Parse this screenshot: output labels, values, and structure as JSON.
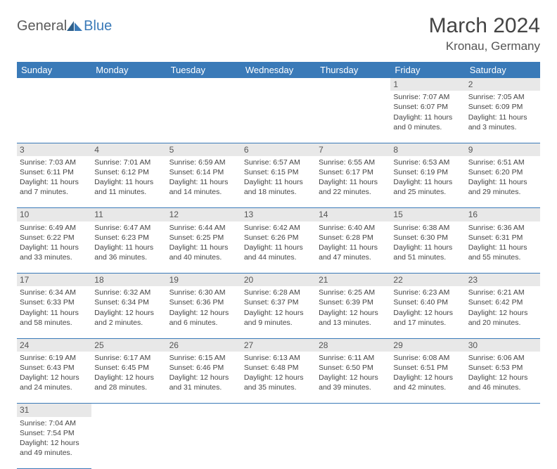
{
  "logo": {
    "part1": "General",
    "part2": "Blue"
  },
  "title": "March 2024",
  "location": "Kronau, Germany",
  "colors": {
    "header_bg": "#3a7ab8",
    "header_fg": "#ffffff",
    "daynum_bg": "#e8e8e8",
    "row_border": "#3a7ab8",
    "text": "#444444"
  },
  "weekdays": [
    "Sunday",
    "Monday",
    "Tuesday",
    "Wednesday",
    "Thursday",
    "Friday",
    "Saturday"
  ],
  "weeks": [
    [
      null,
      null,
      null,
      null,
      null,
      {
        "n": "1",
        "sunrise": "Sunrise: 7:07 AM",
        "sunset": "Sunset: 6:07 PM",
        "day1": "Daylight: 11 hours",
        "day2": "and 0 minutes."
      },
      {
        "n": "2",
        "sunrise": "Sunrise: 7:05 AM",
        "sunset": "Sunset: 6:09 PM",
        "day1": "Daylight: 11 hours",
        "day2": "and 3 minutes."
      }
    ],
    [
      {
        "n": "3",
        "sunrise": "Sunrise: 7:03 AM",
        "sunset": "Sunset: 6:11 PM",
        "day1": "Daylight: 11 hours",
        "day2": "and 7 minutes."
      },
      {
        "n": "4",
        "sunrise": "Sunrise: 7:01 AM",
        "sunset": "Sunset: 6:12 PM",
        "day1": "Daylight: 11 hours",
        "day2": "and 11 minutes."
      },
      {
        "n": "5",
        "sunrise": "Sunrise: 6:59 AM",
        "sunset": "Sunset: 6:14 PM",
        "day1": "Daylight: 11 hours",
        "day2": "and 14 minutes."
      },
      {
        "n": "6",
        "sunrise": "Sunrise: 6:57 AM",
        "sunset": "Sunset: 6:15 PM",
        "day1": "Daylight: 11 hours",
        "day2": "and 18 minutes."
      },
      {
        "n": "7",
        "sunrise": "Sunrise: 6:55 AM",
        "sunset": "Sunset: 6:17 PM",
        "day1": "Daylight: 11 hours",
        "day2": "and 22 minutes."
      },
      {
        "n": "8",
        "sunrise": "Sunrise: 6:53 AM",
        "sunset": "Sunset: 6:19 PM",
        "day1": "Daylight: 11 hours",
        "day2": "and 25 minutes."
      },
      {
        "n": "9",
        "sunrise": "Sunrise: 6:51 AM",
        "sunset": "Sunset: 6:20 PM",
        "day1": "Daylight: 11 hours",
        "day2": "and 29 minutes."
      }
    ],
    [
      {
        "n": "10",
        "sunrise": "Sunrise: 6:49 AM",
        "sunset": "Sunset: 6:22 PM",
        "day1": "Daylight: 11 hours",
        "day2": "and 33 minutes."
      },
      {
        "n": "11",
        "sunrise": "Sunrise: 6:47 AM",
        "sunset": "Sunset: 6:23 PM",
        "day1": "Daylight: 11 hours",
        "day2": "and 36 minutes."
      },
      {
        "n": "12",
        "sunrise": "Sunrise: 6:44 AM",
        "sunset": "Sunset: 6:25 PM",
        "day1": "Daylight: 11 hours",
        "day2": "and 40 minutes."
      },
      {
        "n": "13",
        "sunrise": "Sunrise: 6:42 AM",
        "sunset": "Sunset: 6:26 PM",
        "day1": "Daylight: 11 hours",
        "day2": "and 44 minutes."
      },
      {
        "n": "14",
        "sunrise": "Sunrise: 6:40 AM",
        "sunset": "Sunset: 6:28 PM",
        "day1": "Daylight: 11 hours",
        "day2": "and 47 minutes."
      },
      {
        "n": "15",
        "sunrise": "Sunrise: 6:38 AM",
        "sunset": "Sunset: 6:30 PM",
        "day1": "Daylight: 11 hours",
        "day2": "and 51 minutes."
      },
      {
        "n": "16",
        "sunrise": "Sunrise: 6:36 AM",
        "sunset": "Sunset: 6:31 PM",
        "day1": "Daylight: 11 hours",
        "day2": "and 55 minutes."
      }
    ],
    [
      {
        "n": "17",
        "sunrise": "Sunrise: 6:34 AM",
        "sunset": "Sunset: 6:33 PM",
        "day1": "Daylight: 11 hours",
        "day2": "and 58 minutes."
      },
      {
        "n": "18",
        "sunrise": "Sunrise: 6:32 AM",
        "sunset": "Sunset: 6:34 PM",
        "day1": "Daylight: 12 hours",
        "day2": "and 2 minutes."
      },
      {
        "n": "19",
        "sunrise": "Sunrise: 6:30 AM",
        "sunset": "Sunset: 6:36 PM",
        "day1": "Daylight: 12 hours",
        "day2": "and 6 minutes."
      },
      {
        "n": "20",
        "sunrise": "Sunrise: 6:28 AM",
        "sunset": "Sunset: 6:37 PM",
        "day1": "Daylight: 12 hours",
        "day2": "and 9 minutes."
      },
      {
        "n": "21",
        "sunrise": "Sunrise: 6:25 AM",
        "sunset": "Sunset: 6:39 PM",
        "day1": "Daylight: 12 hours",
        "day2": "and 13 minutes."
      },
      {
        "n": "22",
        "sunrise": "Sunrise: 6:23 AM",
        "sunset": "Sunset: 6:40 PM",
        "day1": "Daylight: 12 hours",
        "day2": "and 17 minutes."
      },
      {
        "n": "23",
        "sunrise": "Sunrise: 6:21 AM",
        "sunset": "Sunset: 6:42 PM",
        "day1": "Daylight: 12 hours",
        "day2": "and 20 minutes."
      }
    ],
    [
      {
        "n": "24",
        "sunrise": "Sunrise: 6:19 AM",
        "sunset": "Sunset: 6:43 PM",
        "day1": "Daylight: 12 hours",
        "day2": "and 24 minutes."
      },
      {
        "n": "25",
        "sunrise": "Sunrise: 6:17 AM",
        "sunset": "Sunset: 6:45 PM",
        "day1": "Daylight: 12 hours",
        "day2": "and 28 minutes."
      },
      {
        "n": "26",
        "sunrise": "Sunrise: 6:15 AM",
        "sunset": "Sunset: 6:46 PM",
        "day1": "Daylight: 12 hours",
        "day2": "and 31 minutes."
      },
      {
        "n": "27",
        "sunrise": "Sunrise: 6:13 AM",
        "sunset": "Sunset: 6:48 PM",
        "day1": "Daylight: 12 hours",
        "day2": "and 35 minutes."
      },
      {
        "n": "28",
        "sunrise": "Sunrise: 6:11 AM",
        "sunset": "Sunset: 6:50 PM",
        "day1": "Daylight: 12 hours",
        "day2": "and 39 minutes."
      },
      {
        "n": "29",
        "sunrise": "Sunrise: 6:08 AM",
        "sunset": "Sunset: 6:51 PM",
        "day1": "Daylight: 12 hours",
        "day2": "and 42 minutes."
      },
      {
        "n": "30",
        "sunrise": "Sunrise: 6:06 AM",
        "sunset": "Sunset: 6:53 PM",
        "day1": "Daylight: 12 hours",
        "day2": "and 46 minutes."
      }
    ],
    [
      {
        "n": "31",
        "sunrise": "Sunrise: 7:04 AM",
        "sunset": "Sunset: 7:54 PM",
        "day1": "Daylight: 12 hours",
        "day2": "and 49 minutes."
      },
      null,
      null,
      null,
      null,
      null,
      null
    ]
  ]
}
